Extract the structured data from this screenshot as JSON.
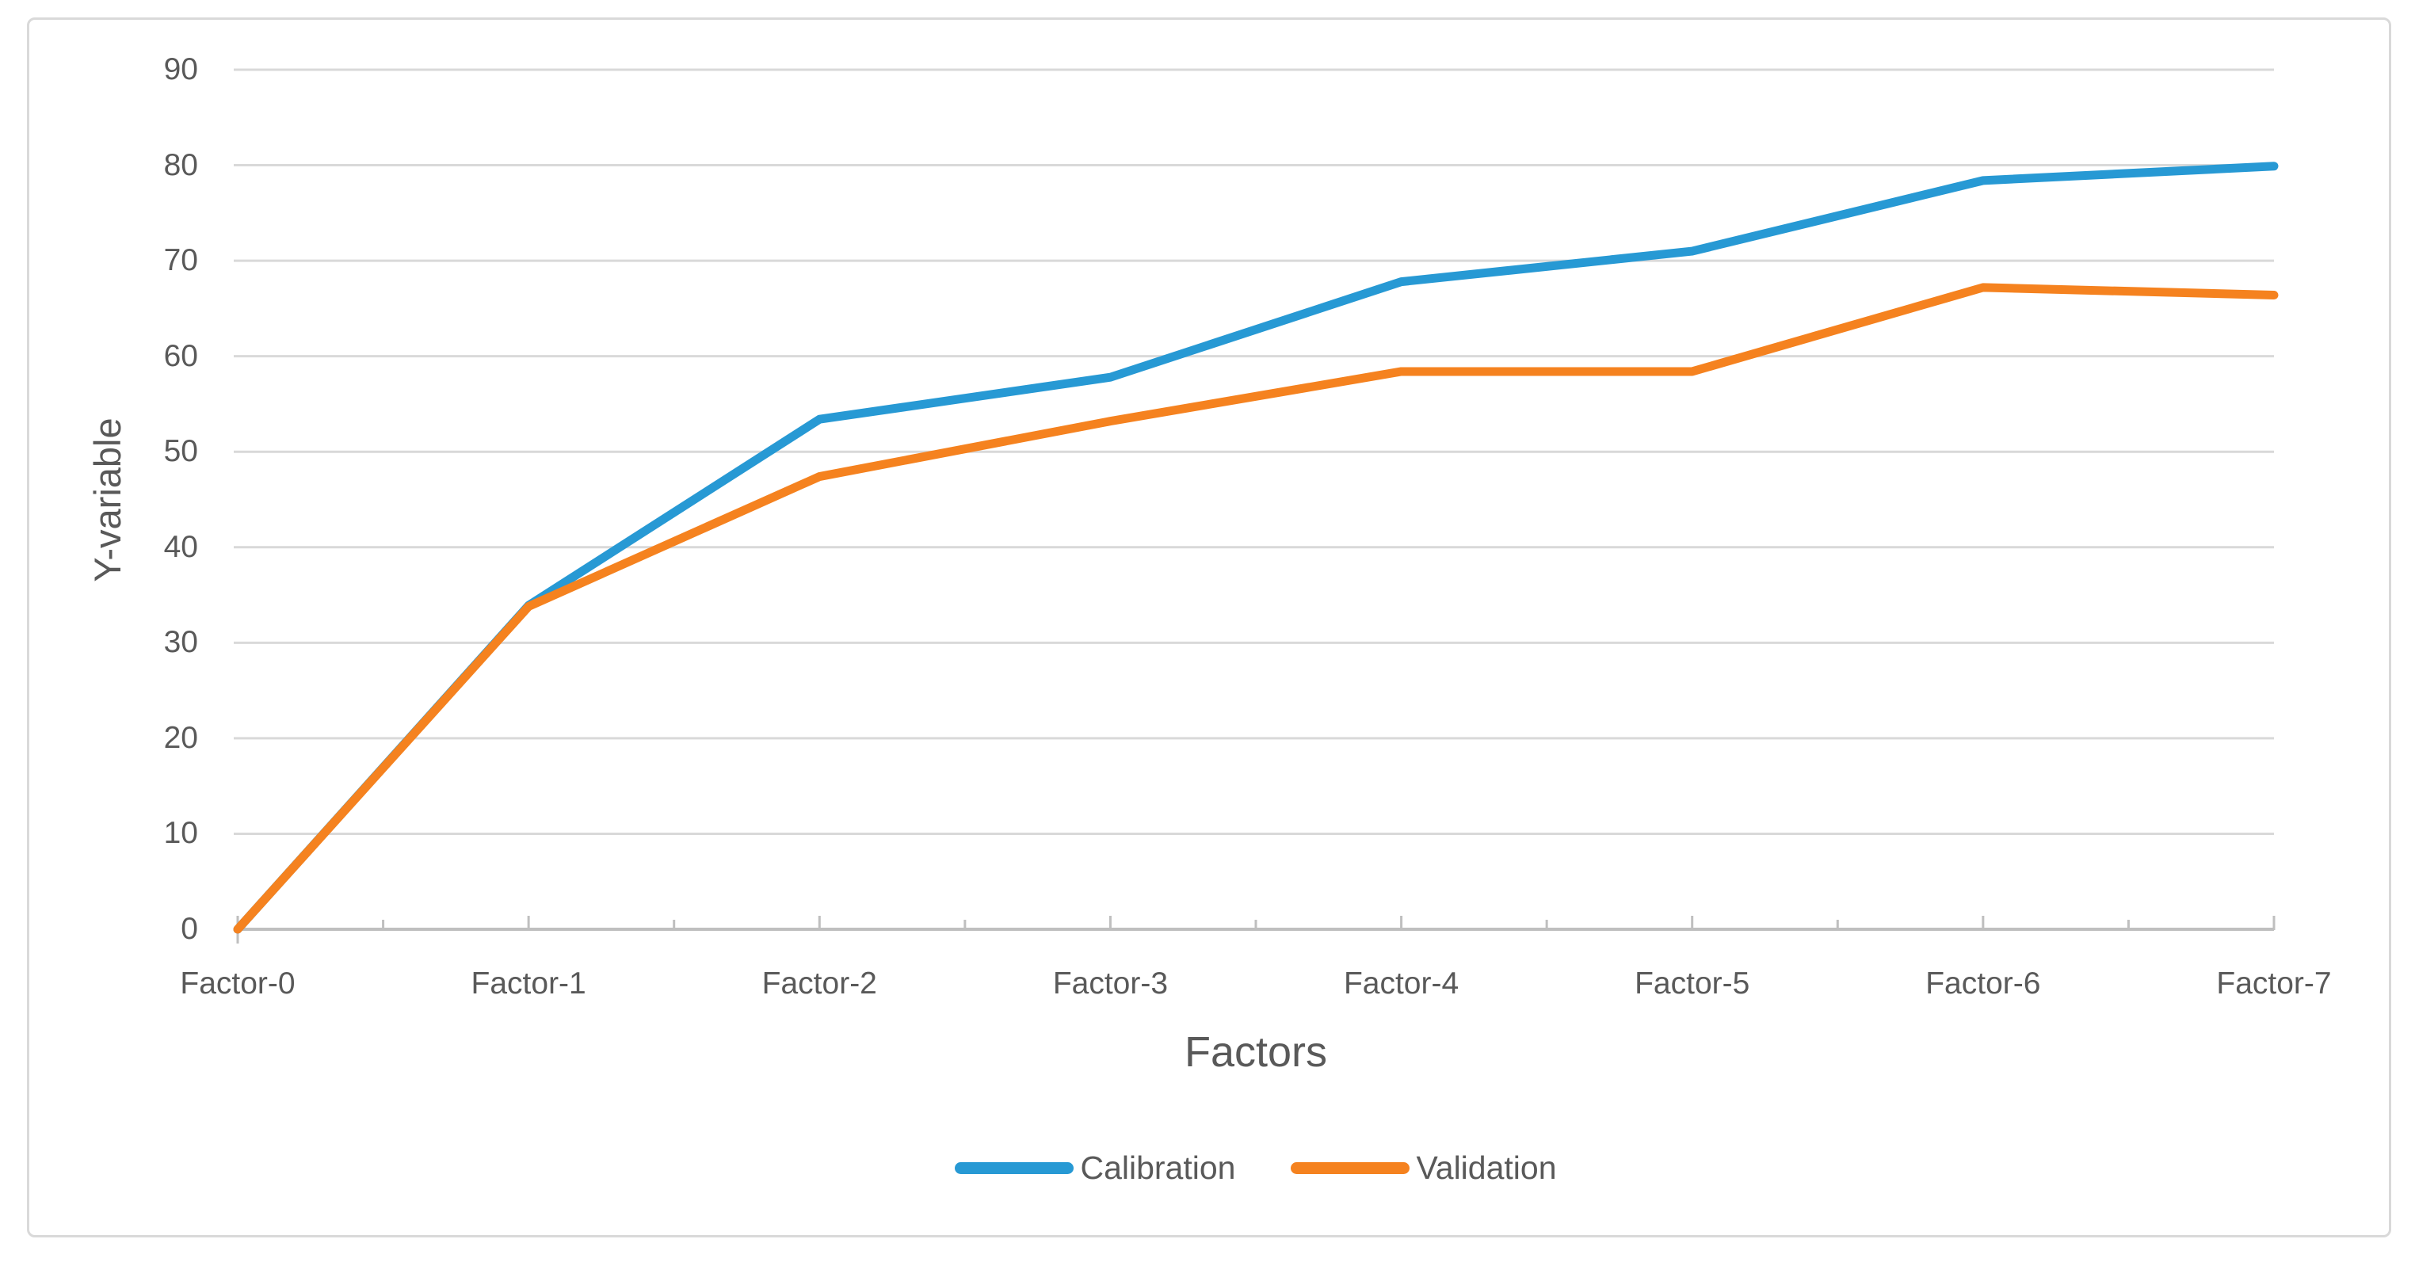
{
  "figure": {
    "background": "#FFFFFF",
    "border_color": "#D9D9D9"
  },
  "chart_data": {
    "type": "line",
    "title": "",
    "categories": [
      "Factor-0",
      "Factor-1",
      "Factor-2",
      "Factor-3",
      "Factor-4",
      "Factor-5",
      "Factor-6",
      "Factor-7"
    ],
    "series": [
      {
        "name": "Calibration",
        "color": "#2799D4",
        "values": [
          0,
          33.9,
          53.4,
          57.8,
          67.8,
          71.0,
          78.4,
          79.9
        ]
      },
      {
        "name": "Validation",
        "color": "#F5821F",
        "values": [
          0,
          33.8,
          47.4,
          53.2,
          58.4,
          58.4,
          67.2,
          66.4
        ]
      }
    ],
    "xlabel": "Factors",
    "ylabel": "Y-variable",
    "ylim": [
      0,
      90
    ],
    "yticks": [
      0,
      10,
      20,
      30,
      40,
      50,
      60,
      70,
      80,
      90
    ],
    "grid": true,
    "grid_color": "#D9D9D9",
    "axis_color": "#BFBFBF",
    "tick_color": "#BFBFBF",
    "label_color": "#595959",
    "legend_position": "bottom",
    "line_width": 11
  }
}
